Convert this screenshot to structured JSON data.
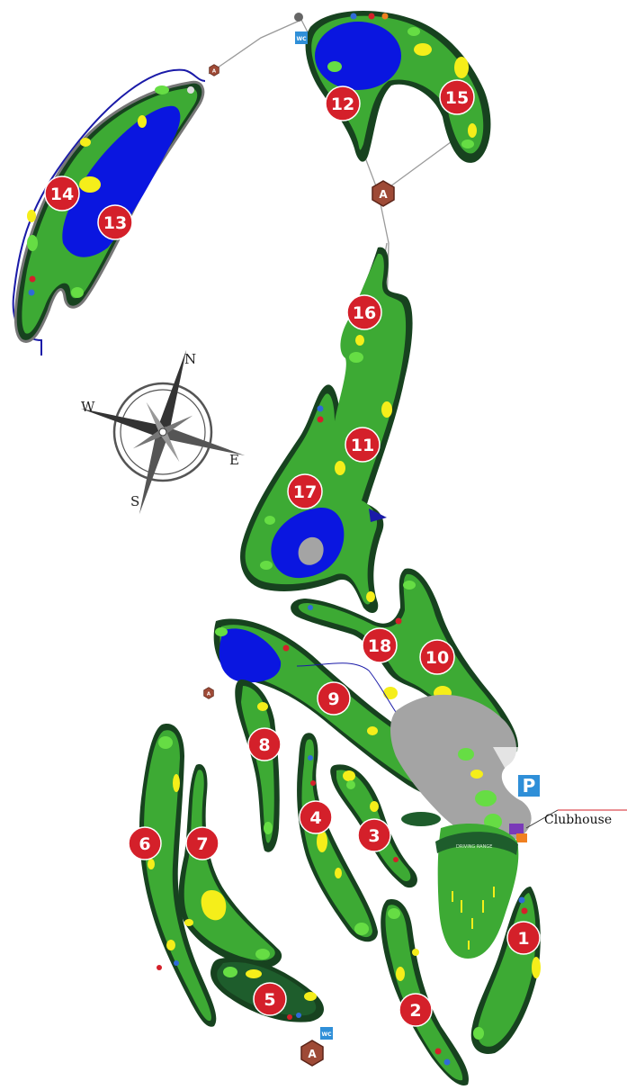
{
  "map": {
    "compass": {
      "north": "N",
      "south": "S",
      "east": "E",
      "west": "W"
    },
    "labels": {
      "clubhouse": "Clubhouse",
      "parking": "P",
      "wc": "WC",
      "facility": "A",
      "driving_range": "DRIVING RANGE"
    },
    "holes": [
      "1",
      "2",
      "3",
      "4",
      "5",
      "6",
      "7",
      "8",
      "9",
      "10",
      "11",
      "12",
      "13",
      "14",
      "15",
      "16",
      "17",
      "18"
    ],
    "colors": {
      "fairway": "#3daa34",
      "rough": "#1e5d2c",
      "dark_rough": "#17421f",
      "water": "#0a16e0",
      "bunker": "#f5ee1a",
      "path": "#a4a4a4",
      "hole_marker": "#d4202a",
      "badge": "#9e4a36",
      "wc_badge": "#2f8fd8",
      "parking_badge": "#2f8fd8",
      "cart_path": "#1a1aa8"
    }
  }
}
